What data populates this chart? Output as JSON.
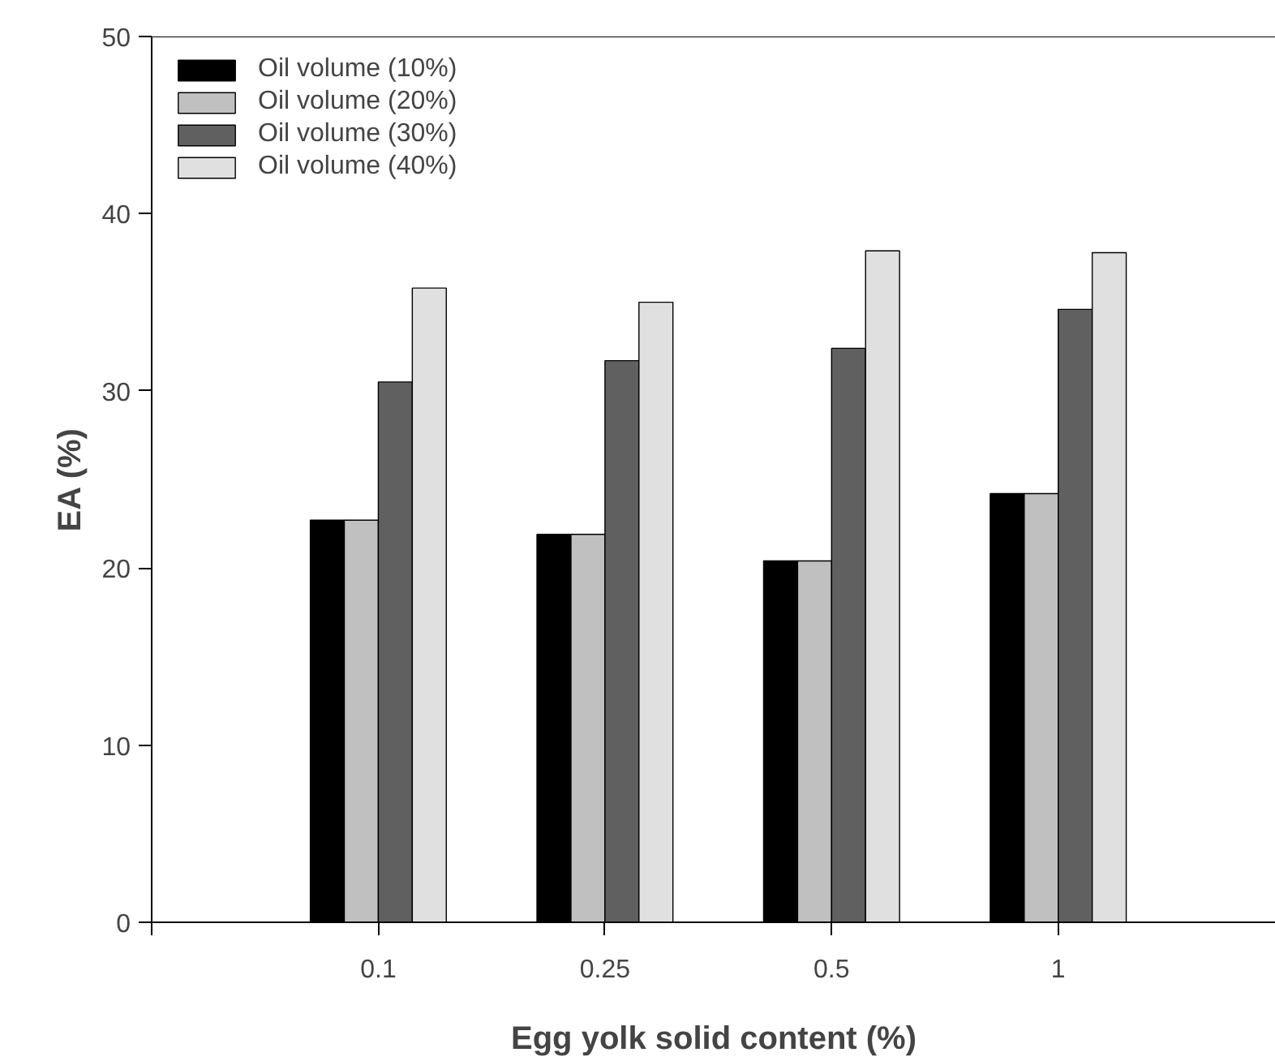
{
  "chart_data": {
    "type": "bar",
    "xlabel": "Egg yolk solid content (%)",
    "ylabel": "EA (%)",
    "categories": [
      "0.1",
      "0.25",
      "0.5",
      "1"
    ],
    "series": [
      {
        "name": "Oil volume (10%)",
        "color": "#000000",
        "values": [
          22.7,
          21.9,
          20.4,
          24.2
        ]
      },
      {
        "name": "Oil volume (20%)",
        "color": "#c0c0c0",
        "values": [
          22.7,
          21.9,
          20.4,
          24.2
        ]
      },
      {
        "name": "Oil volume (30%)",
        "color": "#606060",
        "values": [
          30.5,
          31.7,
          32.4,
          34.6
        ]
      },
      {
        "name": "Oil volume (40%)",
        "color": "#e0e0e0",
        "values": [
          35.8,
          35.0,
          37.9,
          37.8
        ]
      }
    ],
    "ylim": [
      0,
      50
    ],
    "yticks": [
      0,
      10,
      20,
      30,
      40,
      50
    ],
    "grid": false,
    "legend": "top left"
  }
}
